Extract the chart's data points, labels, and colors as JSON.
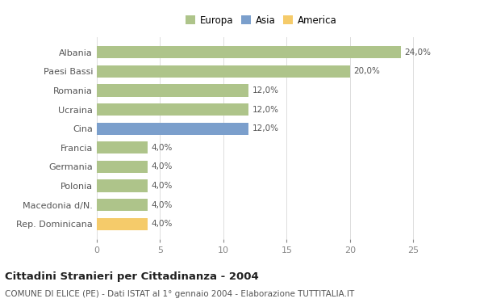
{
  "categories": [
    "Albania",
    "Paesi Bassi",
    "Romania",
    "Ucraina",
    "Cina",
    "Francia",
    "Germania",
    "Polonia",
    "Macedonia d/N.",
    "Rep. Dominicana"
  ],
  "values": [
    24.0,
    20.0,
    12.0,
    12.0,
    12.0,
    4.0,
    4.0,
    4.0,
    4.0,
    4.0
  ],
  "colors": [
    "#aec48a",
    "#aec48a",
    "#aec48a",
    "#aec48a",
    "#7b9fcc",
    "#aec48a",
    "#aec48a",
    "#aec48a",
    "#aec48a",
    "#f5cb6a"
  ],
  "labels": [
    "24,0%",
    "20,0%",
    "12,0%",
    "12,0%",
    "12,0%",
    "4,0%",
    "4,0%",
    "4,0%",
    "4,0%",
    "4,0%"
  ],
  "legend_labels": [
    "Europa",
    "Asia",
    "America"
  ],
  "legend_colors": [
    "#aec48a",
    "#7b9fcc",
    "#f5cb6a"
  ],
  "title": "Cittadini Stranieri per Cittadinanza - 2004",
  "subtitle": "COMUNE DI ELICE (PE) - Dati ISTAT al 1° gennaio 2004 - Elaborazione TUTTITALIA.IT",
  "xlim": [
    0,
    26
  ],
  "xticks": [
    0,
    5,
    10,
    15,
    20,
    25
  ],
  "background_color": "#ffffff",
  "bar_height": 0.65,
  "label_fontsize": 7.5,
  "title_fontsize": 9.5,
  "subtitle_fontsize": 7.5,
  "tick_fontsize": 8,
  "ytick_fontsize": 8
}
